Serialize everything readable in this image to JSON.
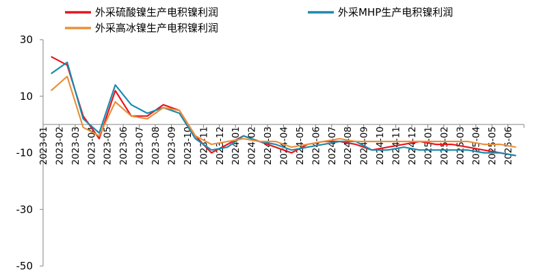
{
  "chart_data": {
    "type": "line",
    "title": "",
    "xlabel": "",
    "ylabel": "",
    "ylim": [
      -50,
      30
    ],
    "yticks": [
      30,
      10,
      -10,
      -30,
      -50
    ],
    "categories": [
      "2023-01",
      "2023-02",
      "2023-03",
      "2023-04",
      "2023-05",
      "2023-06",
      "2023-07",
      "2023-08",
      "2023-09",
      "2023-10",
      "2023-11",
      "2023-12",
      "2024-01",
      "2024-02",
      "2024-03",
      "2024-04",
      "2024-05",
      "2024-06",
      "2024-07",
      "2024-08",
      "2024-09",
      "2024-10",
      "2024-11",
      "2024-12",
      "2025-01",
      "2025-02",
      "2025-03",
      "2025-04",
      "2025-05",
      "2025-06"
    ],
    "legend_position": "top",
    "grid": false,
    "series": [
      {
        "name": "外采硫酸镍生产电积镍利润",
        "color": "#e8141b",
        "values": [
          24,
          21,
          3,
          -5,
          12,
          3,
          3,
          7,
          5,
          -4,
          -10,
          -7,
          -4,
          -6,
          -8,
          -10,
          -7,
          -6,
          -6,
          -7,
          -9,
          -8,
          -7,
          -6,
          -7,
          -7,
          -8,
          -9,
          -10,
          -11
        ]
      },
      {
        "name": "外采MHP生产电积镍利润",
        "color": "#1a8aaf",
        "values": [
          18,
          22,
          2,
          -3,
          14,
          7,
          4,
          6,
          4,
          -5,
          -9,
          -8,
          -4,
          -6,
          -7,
          -9,
          -8,
          -7,
          -6,
          -6,
          -9,
          -9,
          -8,
          -9,
          -9,
          -9,
          -9,
          -10,
          -10,
          -11
        ]
      },
      {
        "name": "外采高冰镍生产电积镍利润",
        "color": "#e8903a",
        "values": [
          12,
          17,
          -1,
          -4,
          8,
          3,
          2,
          6,
          5,
          -4,
          -7,
          -6,
          -5,
          -6,
          -6,
          -8,
          -7,
          -6,
          -5,
          -6,
          -6,
          -6,
          -6,
          -6,
          -6,
          -6,
          -6,
          -7,
          -7,
          -8
        ]
      }
    ]
  }
}
